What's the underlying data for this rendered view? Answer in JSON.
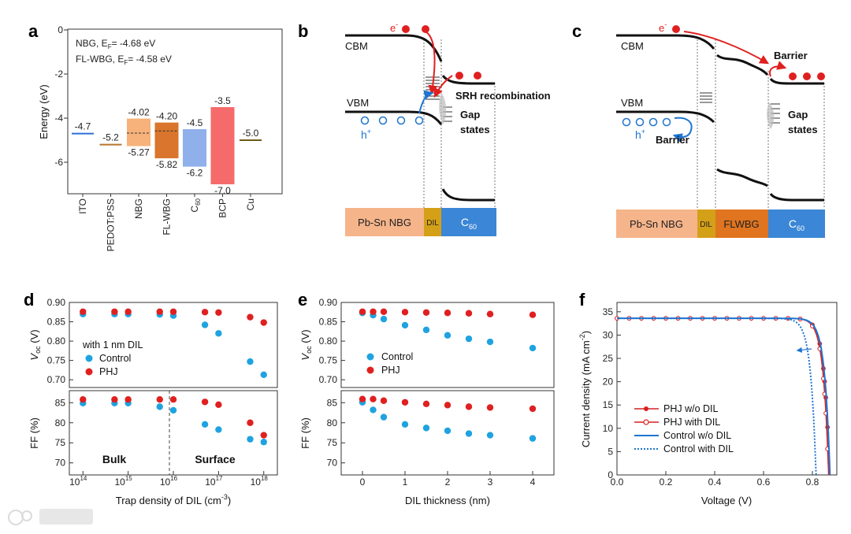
{
  "panels": {
    "a": {
      "label": "a",
      "ylabel": "Energy (eV)",
      "ylim": [
        -7.5,
        0
      ],
      "yticks": [
        "0",
        "-2",
        "-4",
        "-6"
      ],
      "annotation_lines": [
        "NBG, E",
        "F",
        "= -4.68 eV",
        "FL-WBG, E",
        "F",
        "= -4.58 eV"
      ],
      "materials": [
        {
          "name": "ITO",
          "type": "line",
          "level": -4.7,
          "labels": [
            "-4.7"
          ],
          "color": "#2f6fd6"
        },
        {
          "name": "PEDOT:PSS",
          "type": "line",
          "level": -5.2,
          "labels": [
            "-5.2"
          ],
          "color": "#b8742a"
        },
        {
          "name": "NBG",
          "type": "bar",
          "top": -4.02,
          "bottom": -5.27,
          "labels": [
            "-4.02",
            "-5.27"
          ],
          "color": "#f6b27a",
          "ef": -4.68
        },
        {
          "name": "FL-WBG",
          "type": "bar",
          "top": -4.2,
          "bottom": -5.82,
          "labels": [
            "-4.20",
            "-5.82"
          ],
          "color": "#d9752c",
          "ef": -4.58
        },
        {
          "name": "C",
          "sub": "60",
          "type": "bar",
          "top": -4.5,
          "bottom": -6.2,
          "labels": [
            "-4.5",
            "-6.2"
          ],
          "color": "#8fb0ea"
        },
        {
          "name": "BCP",
          "type": "bar",
          "top": -3.5,
          "bottom": -7.0,
          "labels": [
            "-3.5",
            "-7.0"
          ],
          "color": "#f56b6b"
        },
        {
          "name": "Cu",
          "type": "line",
          "level": -5.0,
          "labels": [
            "-5.0"
          ],
          "color": "#6b5a1a"
        }
      ]
    },
    "b": {
      "label": "b",
      "texts": {
        "electron": "e",
        "cbm": "CBM",
        "vbm": "VBM",
        "hole": "h",
        "srh": "SRH recombination",
        "gap1": "Gap",
        "gap2": "states"
      },
      "layers": [
        {
          "name": "Pb-Sn NBG",
          "color": "#f5b48a"
        },
        {
          "name": "DIL",
          "color": "#d4a017"
        },
        {
          "name": "C",
          "sub": "60",
          "color": "#3b86d6"
        }
      ]
    },
    "c": {
      "label": "c",
      "texts": {
        "electron": "e",
        "cbm": "CBM",
        "vbm": "VBM",
        "hole": "h",
        "barrier_top": "Barrier",
        "barrier_bottom": "Barrier",
        "gap1": "Gap",
        "gap2": "states"
      },
      "layers": [
        {
          "name": "Pb-Sn NBG",
          "color": "#f5b48a"
        },
        {
          "name": "DIL",
          "color": "#d4a017"
        },
        {
          "name": "FLWBG",
          "color": "#e0741f"
        },
        {
          "name": "C",
          "sub": "60",
          "color": "#3b86d6"
        }
      ]
    },
    "d": {
      "label": "d",
      "xlabel": "Trap density of DIL (cm",
      "xlabel_sup": "-3",
      "xlabel_end": ")",
      "xticks": [
        {
          "base": "10",
          "exp": "14"
        },
        {
          "base": "10",
          "exp": "15"
        },
        {
          "base": "10",
          "exp": "16"
        },
        {
          "base": "10",
          "exp": "17"
        },
        {
          "base": "10",
          "exp": "18"
        }
      ],
      "voc_ylabel": "V",
      "voc_ylabel_sub": "oc",
      "voc_ylabel_unit": " (V)",
      "ff_ylabel": "FF (%)",
      "voc_yticks": [
        "0.90",
        "0.85",
        "0.80",
        "0.75",
        "0.70"
      ],
      "ff_yticks": [
        "85",
        "80",
        "75",
        "70"
      ],
      "legend_title": "with 1 nm DIL",
      "region_labels": [
        "Bulk",
        "Surface"
      ]
    },
    "e": {
      "label": "e",
      "xlabel": "DIL thickness (nm)",
      "xticks": [
        "0",
        "1",
        "2",
        "3",
        "4"
      ],
      "voc_ylabel": "V",
      "voc_ylabel_sub": "oc",
      "voc_ylabel_unit": " (V)",
      "ff_ylabel": "FF (%)",
      "voc_yticks": [
        "0.90",
        "0.85",
        "0.80",
        "0.75",
        "0.70"
      ],
      "ff_yticks": [
        "85",
        "80",
        "75",
        "70"
      ]
    },
    "f": {
      "label": "f",
      "xlabel": "Voltage (V)",
      "ylabel": "Current density (mA cm",
      "ylabel_sup": "-2",
      "ylabel_end": ")",
      "xticks": [
        "0.0",
        "0.2",
        "0.4",
        "0.6",
        "0.8"
      ],
      "yticks": [
        "0",
        "5",
        "10",
        "15",
        "20",
        "25",
        "30",
        "35"
      ]
    }
  },
  "chart_data": [
    {
      "panel": "d-voc",
      "type": "scatter",
      "xscale": "log",
      "xlim": [
        50000000000000.0,
        2e+18
      ],
      "ylim": [
        0.68,
        0.9
      ],
      "x": [
        100000000000000.0,
        500000000000000.0,
        1000000000000000.0,
        5000000000000000.0,
        1e+16,
        5e+16,
        1e+17,
        5e+17,
        1e+18
      ],
      "series": [
        {
          "name": "Control",
          "color": "#1fa3e0",
          "values": [
            0.87,
            0.87,
            0.87,
            0.869,
            0.866,
            0.842,
            0.82,
            0.747,
            0.713
          ]
        },
        {
          "name": "PHJ",
          "color": "#e02020",
          "values": [
            0.876,
            0.876,
            0.876,
            0.876,
            0.876,
            0.875,
            0.874,
            0.862,
            0.848
          ]
        }
      ],
      "xlabel": "",
      "ylabel": "Voc (V)"
    },
    {
      "panel": "d-ff",
      "type": "scatter",
      "xscale": "log",
      "xlim": [
        50000000000000.0,
        2e+18
      ],
      "ylim": [
        67,
        88
      ],
      "x": [
        100000000000000.0,
        500000000000000.0,
        1000000000000000.0,
        5000000000000000.0,
        1e+16,
        5e+16,
        1e+17,
        5e+17,
        1e+18
      ],
      "series": [
        {
          "name": "Control",
          "color": "#1fa3e0",
          "values": [
            84.9,
            84.9,
            84.9,
            84.0,
            83.1,
            79.6,
            78.3,
            75.9,
            75.2
          ]
        },
        {
          "name": "PHJ",
          "color": "#e02020",
          "values": [
            85.8,
            85.8,
            85.8,
            85.8,
            85.8,
            85.2,
            84.5,
            80.0,
            76.9
          ]
        }
      ],
      "xlabel": "Trap density of DIL (cm-3)",
      "ylabel": "FF (%)"
    },
    {
      "panel": "e-voc",
      "type": "scatter",
      "xlim": [
        -0.5,
        4.5
      ],
      "ylim": [
        0.68,
        0.9
      ],
      "x": [
        0,
        0.25,
        0.5,
        1,
        1.5,
        2,
        2.5,
        3,
        4
      ],
      "series": [
        {
          "name": "Control",
          "color": "#1fa3e0",
          "values": [
            0.873,
            0.867,
            0.857,
            0.841,
            0.829,
            0.815,
            0.806,
            0.798,
            0.782
          ]
        },
        {
          "name": "PHJ",
          "color": "#e02020",
          "values": [
            0.876,
            0.876,
            0.876,
            0.875,
            0.874,
            0.873,
            0.872,
            0.87,
            0.868
          ]
        }
      ],
      "xlabel": "",
      "ylabel": "Voc (V)"
    },
    {
      "panel": "e-ff",
      "type": "scatter",
      "xlim": [
        -0.5,
        4.5
      ],
      "ylim": [
        67,
        88
      ],
      "x": [
        0,
        0.25,
        0.5,
        1,
        1.5,
        2,
        2.5,
        3,
        4
      ],
      "series": [
        {
          "name": "Control",
          "color": "#1fa3e0",
          "values": [
            85.1,
            83.2,
            81.4,
            79.6,
            78.7,
            78.0,
            77.3,
            76.9,
            76.1
          ]
        },
        {
          "name": "PHJ",
          "color": "#e02020",
          "values": [
            85.9,
            85.9,
            85.5,
            85.1,
            84.7,
            84.4,
            84.0,
            83.8,
            83.5
          ]
        }
      ],
      "xlabel": "DIL thickness (nm)",
      "ylabel": "FF (%)"
    },
    {
      "panel": "f",
      "type": "line",
      "xlim": [
        0,
        0.9
      ],
      "ylim": [
        0,
        37
      ],
      "jsc": 33.6,
      "series": [
        {
          "name": "PHJ w/o DIL",
          "color": "#d62020",
          "marker": "filled-circle",
          "voc": 0.87
        },
        {
          "name": "PHJ with DIL",
          "color": "#d62020",
          "marker": "open-circle",
          "voc": 0.866
        },
        {
          "name": "Control w/o DIL",
          "color": "#1f74d0",
          "marker": "none",
          "dash": "solid",
          "voc": 0.872
        },
        {
          "name": "Control with DIL",
          "color": "#1f74d0",
          "marker": "none",
          "dash": "dotted",
          "voc": 0.815
        }
      ],
      "xlabel": "Voltage (V)",
      "ylabel": "Current density (mA cm-2)"
    }
  ]
}
